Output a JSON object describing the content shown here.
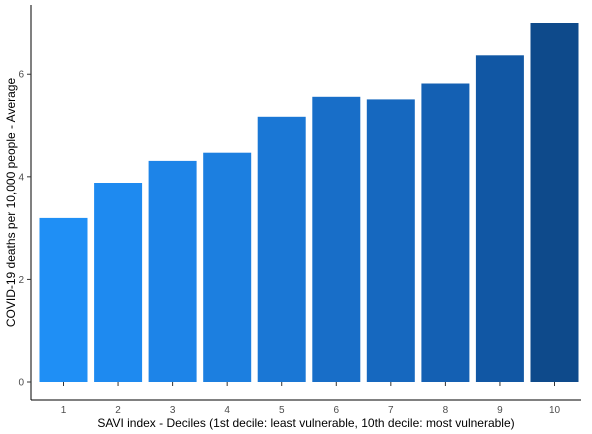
{
  "chart_data": {
    "type": "bar",
    "title": "",
    "xlabel": "SAVI index - Deciles (1st decile: least vulnerable, 10th decile: most vulnerable)",
    "ylabel": "COVID-19 deaths per 10,000 people - Average",
    "categories": [
      "1",
      "2",
      "3",
      "4",
      "5",
      "6",
      "7",
      "8",
      "9",
      "10"
    ],
    "values": [
      3.2,
      3.88,
      4.31,
      4.47,
      5.17,
      5.56,
      5.51,
      5.82,
      6.37,
      7.0
    ],
    "ylim": [
      0,
      7.35
    ],
    "yticks": [
      "0",
      "2",
      "4",
      "6"
    ],
    "grid": false,
    "legend": "none",
    "bar_colors": [
      "#1f8ff5",
      "#1e8af0",
      "#1d84e8",
      "#1c7fe0",
      "#1a77d5",
      "#186ec8",
      "#1668bf",
      "#1460b3",
      "#1157a4",
      "#0e4a8b"
    ],
    "axis_color": "#000000"
  }
}
